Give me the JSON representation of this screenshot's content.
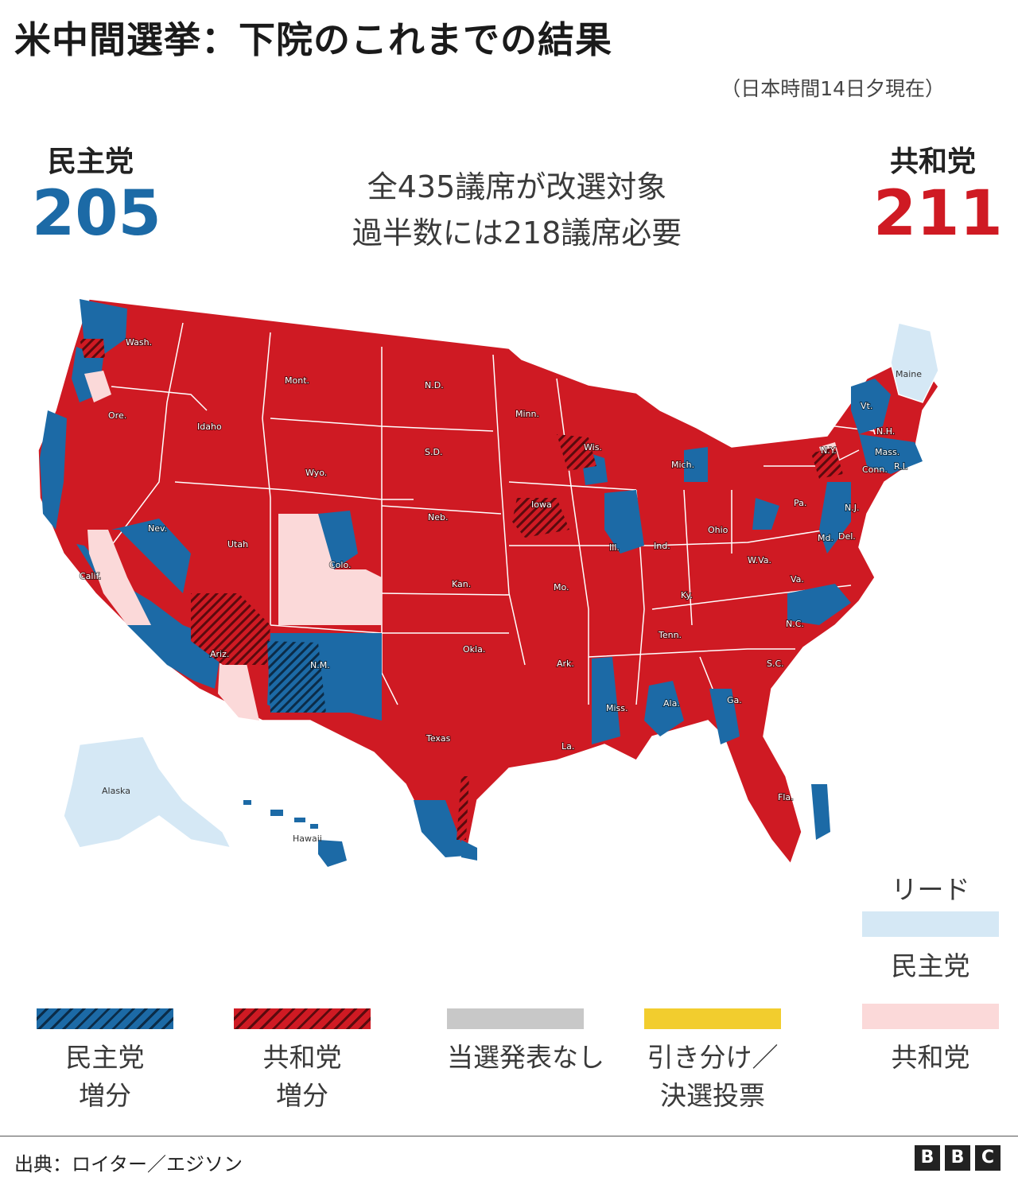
{
  "title": "米中間選挙：下院のこれまでの結果",
  "timestamp": "（日本時間14日夕現在）",
  "democrats": {
    "name": "民主党",
    "seats": "205",
    "color": "#1c6aa6"
  },
  "republicans": {
    "name": "共和党",
    "seats": "211",
    "color": "#cf1a23"
  },
  "summary": {
    "line1": "全435議席が改選対象",
    "line2": "過半数には218議席必要"
  },
  "map": {
    "labels": {
      "wash": "Wash.",
      "ore": "Ore.",
      "calif": "Calif.",
      "nev": "Nev.",
      "idaho": "Idaho",
      "mont": "Mont.",
      "wyo": "Wyo.",
      "utah": "Utah",
      "colo": "Colo.",
      "ariz": "Ariz.",
      "nm": "N.M.",
      "nd": "N.D.",
      "sd": "S.D.",
      "neb": "Neb.",
      "kan": "Kan.",
      "okla": "Okla.",
      "texas": "Texas",
      "minn": "Minn.",
      "iowa": "Iowa",
      "mo": "Mo.",
      "ark": "Ark.",
      "la": "La.",
      "wis": "Wis.",
      "ill": "Ill.",
      "mich": "Mich.",
      "ind": "Ind.",
      "ohio": "Ohio",
      "ky": "Ky.",
      "tenn": "Tenn.",
      "miss": "Miss.",
      "ala": "Ala.",
      "ga": "Ga.",
      "fla": "Fla.",
      "sc": "S.C.",
      "nc": "N.C.",
      "va": "Va.",
      "wva": "W.Va.",
      "pa": "Pa.",
      "ny": "N.Y.",
      "nj": "N.J.",
      "del": "Del.",
      "md": "Md.",
      "conn": "Conn.",
      "ri": "R.I.",
      "mass": "Mass.",
      "nh": "N.H.",
      "vt": "Vt.",
      "maine": "Maine",
      "alaska": "Alaska",
      "hawaii": "Hawaii"
    }
  },
  "lead_legend": {
    "title": "リード",
    "party": "民主党",
    "color": "#d5e8f5"
  },
  "legend": [
    {
      "line1": "民主党",
      "line2": "増分",
      "color": "#1c6aa6"
    },
    {
      "line1": "共和党",
      "line2": "増分",
      "color": "#cf1a23"
    },
    {
      "line1": "当選発表なし",
      "line2": "",
      "color": "#c8c8c8"
    },
    {
      "line1": "引き分け／",
      "line2": "決選投票",
      "color": "#f2cd2e"
    },
    {
      "line1": "共和党",
      "line2": "",
      "color": "#fbd9d9"
    }
  ],
  "source": "出典：ロイター／エジソン",
  "logo": [
    "B",
    "B",
    "C"
  ]
}
